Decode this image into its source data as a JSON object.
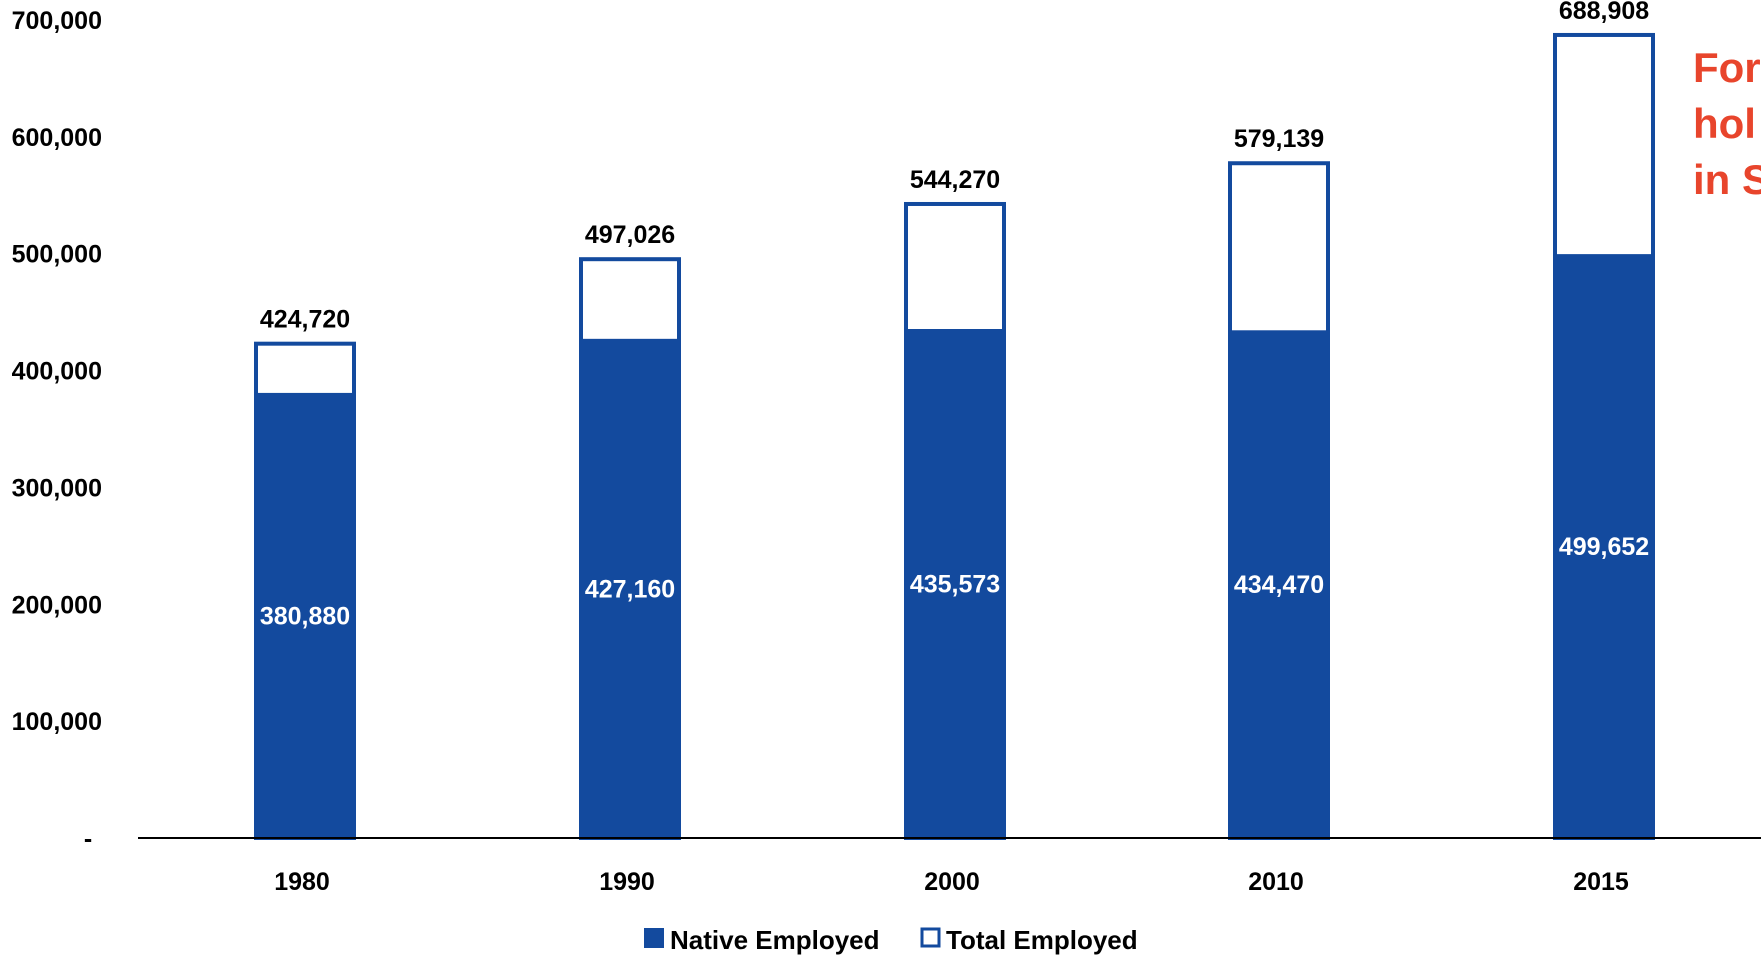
{
  "chart_data": {
    "type": "bar",
    "categories": [
      "1980",
      "1990",
      "2000",
      "2010",
      "2015"
    ],
    "series": [
      {
        "name": "Native Employed",
        "values": [
          380880,
          427160,
          435573,
          434470,
          499652
        ],
        "style": "filled"
      },
      {
        "name": "Total Employed",
        "values": [
          424720,
          497026,
          544270,
          579139,
          688908
        ],
        "style": "outline"
      }
    ],
    "data_labels": {
      "native": [
        "380,880",
        "427,160",
        "435,573",
        "434,470",
        "499,652"
      ],
      "total": [
        "424,720",
        "497,026",
        "544,270",
        "579,139",
        "688,908"
      ]
    },
    "y_ticks": [
      {
        "value": 0,
        "label": "-"
      },
      {
        "value": 100000,
        "label": "100,000"
      },
      {
        "value": 200000,
        "label": "200,000"
      },
      {
        "value": 300000,
        "label": "300,000"
      },
      {
        "value": 400000,
        "label": "400,000"
      },
      {
        "value": 500000,
        "label": "500,000"
      },
      {
        "value": 600000,
        "label": "600,000"
      },
      {
        "value": 700000,
        "label": "700,000"
      }
    ],
    "ylim": [
      0,
      700000
    ],
    "title": "",
    "xlabel": "",
    "ylabel": "",
    "grid": false,
    "legend_position": "bottom",
    "colors": {
      "native": "#134a9e",
      "total_outline": "#134a9e",
      "note": "#e8452c",
      "axis": "#000000"
    }
  },
  "annotation": {
    "lines": [
      "For",
      "hol",
      "in S"
    ]
  }
}
